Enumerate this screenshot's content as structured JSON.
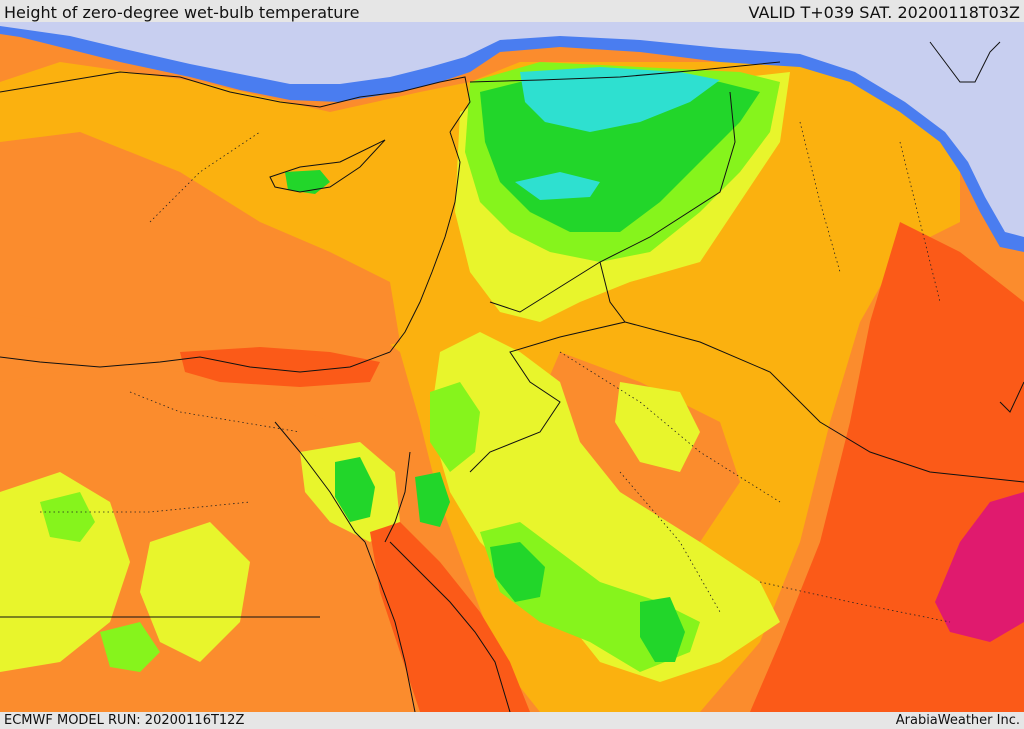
{
  "header": {
    "title": "Height of zero-degree wet-bulb temperature",
    "valid": "VALID T+039 SAT. 20200118T03Z"
  },
  "footer": {
    "model_run": "ECMWF MODEL RUN: 20200116T12Z",
    "credit": "ArabiaWeather Inc."
  },
  "palette": {
    "lowest": "#c8cff0",
    "blue": "#4a7df0",
    "cyan": "#2ee0d0",
    "green": "#22d62a",
    "lime": "#86f41c",
    "yellow": "#e8f52c",
    "gold": "#fbb10f",
    "orange": "#fb8c2d",
    "red_orange": "#fb5a18",
    "magenta": "#e01a6e"
  }
}
